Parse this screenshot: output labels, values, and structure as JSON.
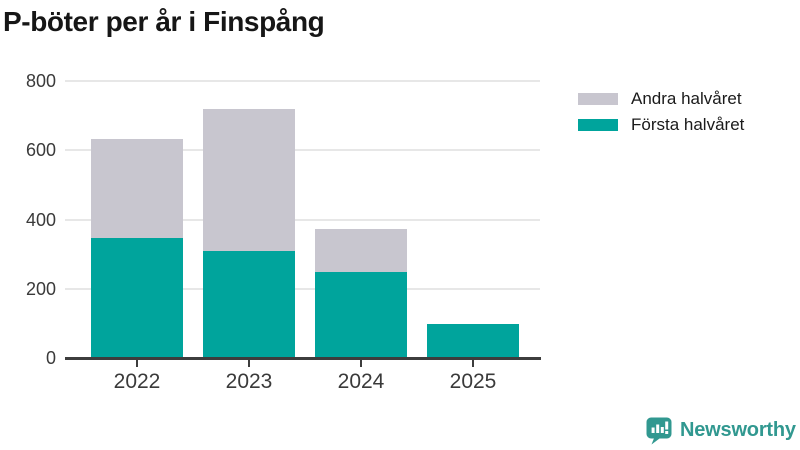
{
  "title": "P-böter per år i Finspång",
  "chart_data": {
    "type": "bar",
    "stacked": true,
    "title": "P-böter per år i Finspång",
    "categories": [
      "2022",
      "2023",
      "2024",
      "2025"
    ],
    "series": [
      {
        "name": "Första halvåret",
        "color": "#00a49c",
        "values": [
          345,
          307,
          245,
          95
        ]
      },
      {
        "name": "Andra halvåret",
        "color": "#c8c6cf",
        "values": [
          285,
          410,
          125,
          0
        ]
      }
    ],
    "totals": [
      630,
      717,
      370,
      95
    ],
    "xlabel": "",
    "ylabel": "",
    "ylim": [
      0,
      800
    ],
    "yticks": [
      0,
      200,
      400,
      600,
      800
    ],
    "grid": "horizontal",
    "legend_position": "top-right",
    "legend_order": [
      "Andra halvåret",
      "Första halvåret"
    ]
  },
  "footer": {
    "brand": "Newsworthy"
  },
  "colors": {
    "first_half_teal": "#00a49c",
    "second_half_gray": "#c8c6cf",
    "brand_teal": "#319890",
    "axis_dark": "#3d3d3d",
    "gridline": "#e7e7e7",
    "text_dark": "#161616"
  }
}
